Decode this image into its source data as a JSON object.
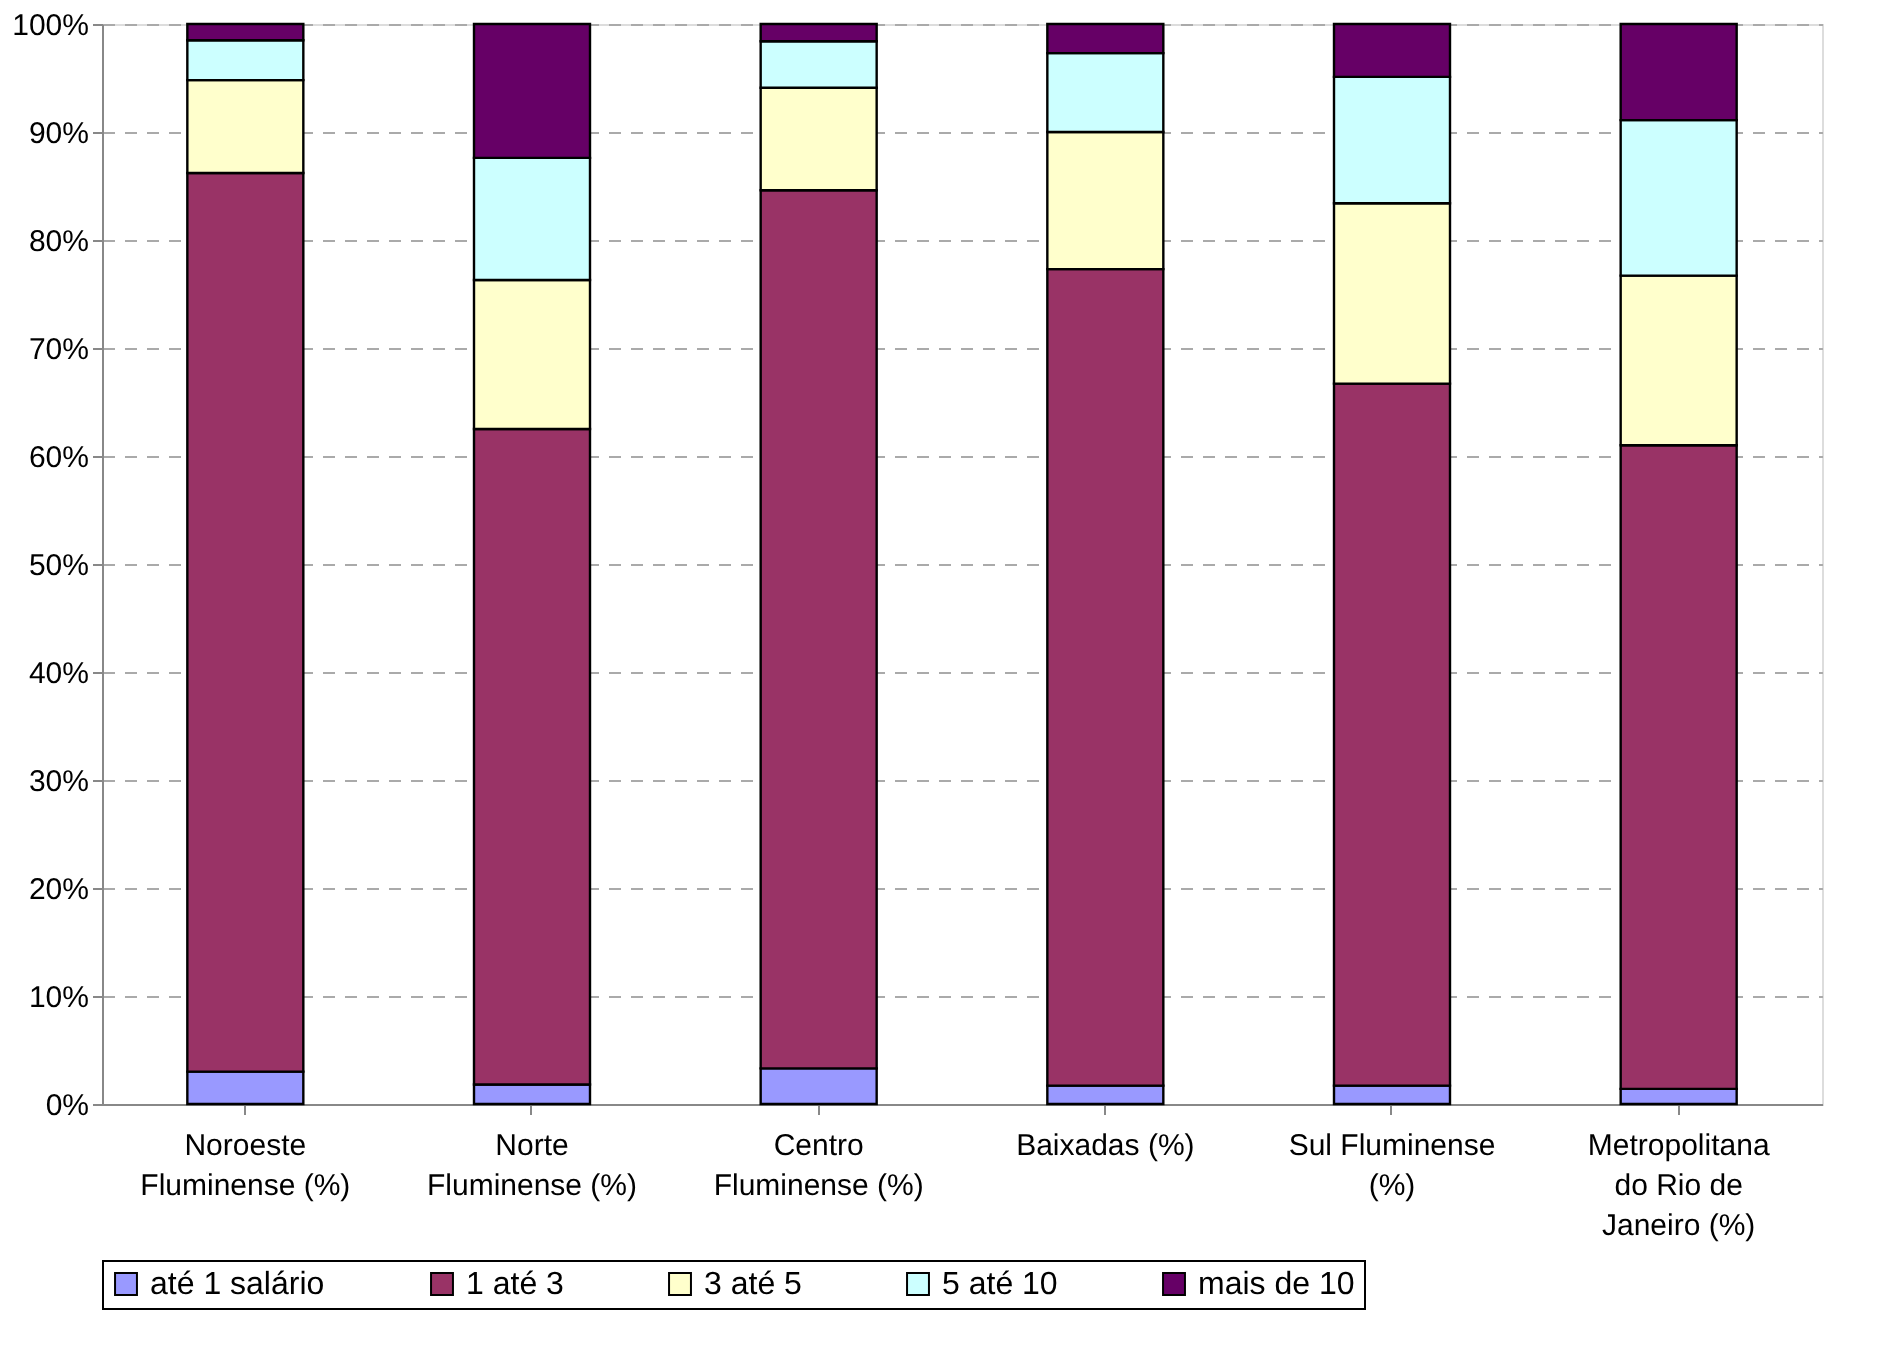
{
  "chart_data": {
    "type": "bar",
    "stacked": true,
    "categories": [
      "Noroeste\nFluminense (%)",
      "Norte\nFluminense (%)",
      "Centro\nFluminense (%)",
      "Baixadas (%)",
      "Sul Fluminense\n(%)",
      "Metropolitana\ndo Rio de\nJaneiro (%)"
    ],
    "series": [
      {
        "name": "até 1 salário",
        "color": "#9999ff",
        "values": [
          3.0,
          1.8,
          3.3,
          1.7,
          1.7,
          1.4
        ]
      },
      {
        "name": "1 até 3",
        "color": "#993366",
        "values": [
          83.2,
          60.7,
          81.3,
          75.6,
          65.0,
          59.6
        ]
      },
      {
        "name": "3 até 5",
        "color": "#ffffcc",
        "values": [
          8.6,
          13.8,
          9.5,
          12.7,
          16.7,
          15.7
        ]
      },
      {
        "name": "5 até 10",
        "color": "#ccffff",
        "values": [
          3.7,
          11.3,
          4.3,
          7.3,
          11.7,
          14.4
        ]
      },
      {
        "name": "mais de 10",
        "color": "#660066",
        "values": [
          1.5,
          12.4,
          1.6,
          2.7,
          4.9,
          8.9
        ]
      }
    ],
    "ylim": [
      0,
      100
    ],
    "yticks": [
      {
        "value": 0,
        "label": "0%"
      },
      {
        "value": 10,
        "label": "10%"
      },
      {
        "value": 20,
        "label": "20%"
      },
      {
        "value": 30,
        "label": "30%"
      },
      {
        "value": 40,
        "label": "40%"
      },
      {
        "value": 50,
        "label": "50%"
      },
      {
        "value": 60,
        "label": "60%"
      },
      {
        "value": 70,
        "label": "70%"
      },
      {
        "value": 80,
        "label": "80%"
      },
      {
        "value": 90,
        "label": "90%"
      },
      {
        "value": 100,
        "label": "100%"
      }
    ],
    "grid": "y",
    "legend": "bottom"
  }
}
